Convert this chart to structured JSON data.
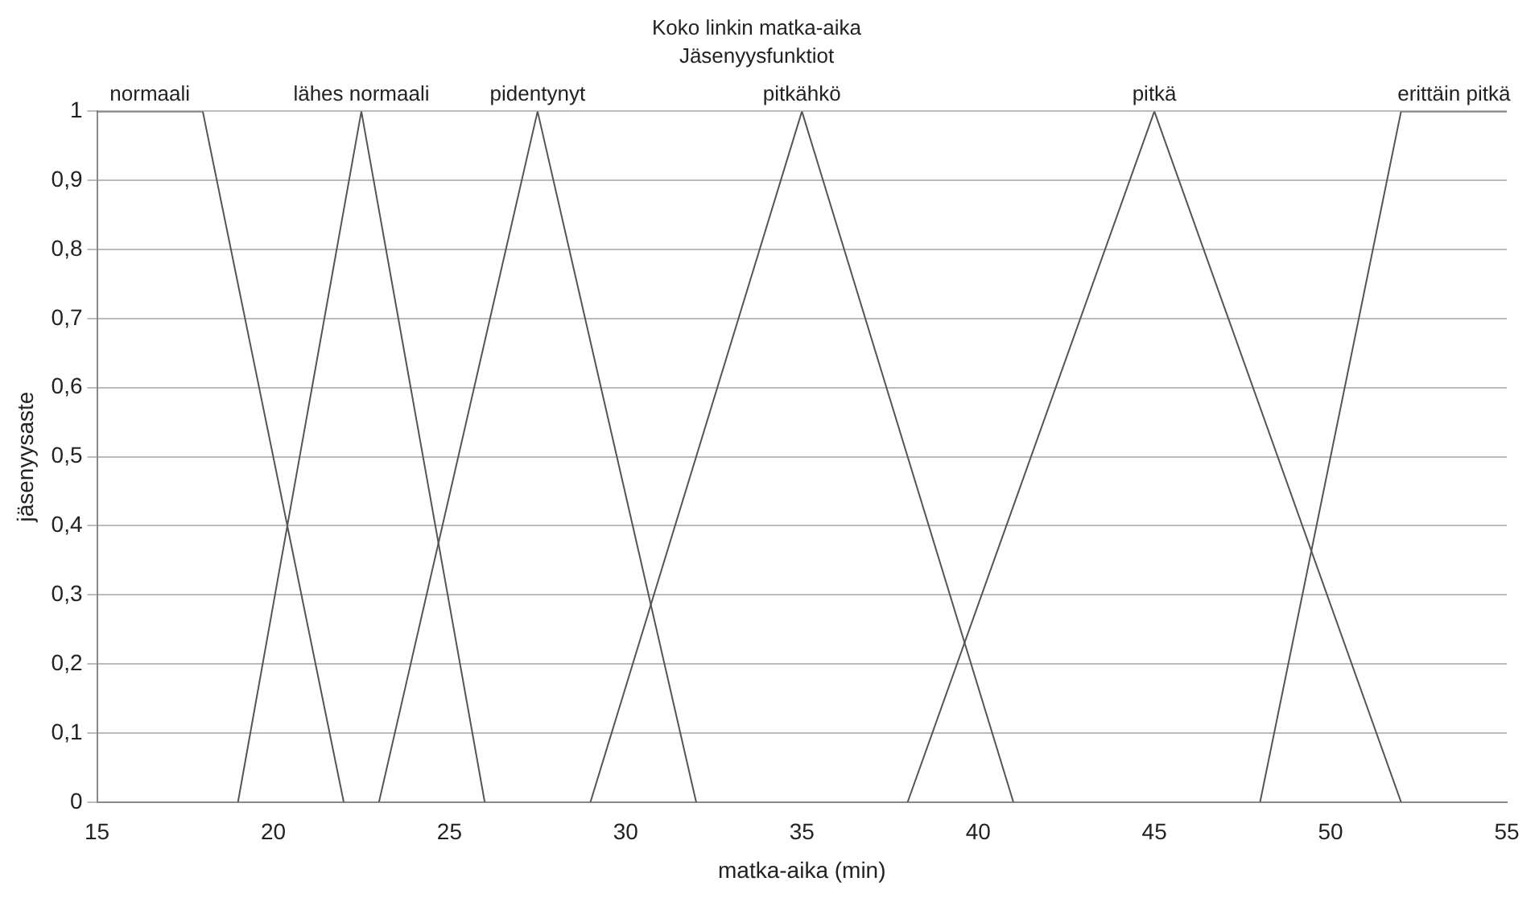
{
  "chart_data": {
    "type": "line",
    "title": "Koko linkin matka-aika",
    "subtitle": "Jäsenyysfunktiot",
    "xlabel": "matka-aika (min)",
    "ylabel": "jäsenyysaste",
    "xlim": [
      15,
      55
    ],
    "xticks": [
      15,
      20,
      25,
      30,
      35,
      40,
      45,
      50,
      55
    ],
    "ylim": [
      0,
      1
    ],
    "yticks": [
      0,
      {
        "value": 0.1,
        "label": "0,1"
      },
      {
        "value": 0.2,
        "label": "0,2"
      },
      {
        "value": 0.3,
        "label": "0,3"
      },
      {
        "value": 0.4,
        "label": "0,4"
      },
      {
        "value": 0.5,
        "label": "0,5"
      },
      {
        "value": 0.6,
        "label": "0,6"
      },
      {
        "value": 0.7,
        "label": "0,7"
      },
      {
        "value": 0.8,
        "label": "0,8"
      },
      {
        "value": 0.9,
        "label": "0,9"
      },
      1
    ],
    "grid": "y",
    "legend": false,
    "marker": "none",
    "line_style": "solid",
    "series": [
      {
        "name": "normaali",
        "color": "#555555",
        "x": [
          15,
          18,
          22
        ],
        "values": [
          1,
          1,
          0
        ]
      },
      {
        "name": "lähes normaali",
        "color": "#555555",
        "x": [
          19,
          22.5,
          26
        ],
        "values": [
          0,
          1,
          0
        ]
      },
      {
        "name": "pidentynyt",
        "color": "#555555",
        "x": [
          23,
          27.5,
          32
        ],
        "values": [
          0,
          1,
          0
        ]
      },
      {
        "name": "pitkähkö",
        "color": "#555555",
        "x": [
          29,
          35,
          41
        ],
        "values": [
          0,
          1,
          0
        ]
      },
      {
        "name": "pitkä",
        "color": "#555555",
        "x": [
          38,
          45,
          52
        ],
        "values": [
          0,
          1,
          0
        ]
      },
      {
        "name": "erittäin pitkä",
        "color": "#555555",
        "x": [
          48,
          52,
          55
        ],
        "values": [
          0,
          1,
          1
        ]
      }
    ]
  }
}
